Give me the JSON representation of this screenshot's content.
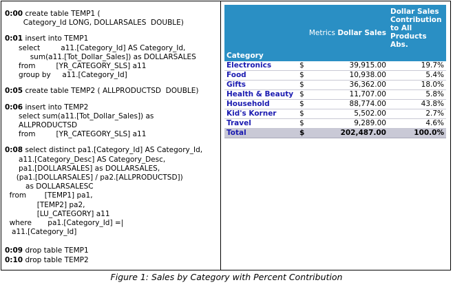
{
  "sql_blocks": [
    {
      "time": "0:00",
      "lines": [
        "create table TEMP1 (",
        "        Category_Id LONG, DOLLARSALES  DOUBLE)"
      ]
    },
    {
      "time": "0:01",
      "lines": [
        "insert into TEMP1",
        "      select         a11.[Category_Id] AS Category_Id,",
        "           sum(a11.[Tot_Dollar_Sales]) as DOLLARSALES",
        "      from         [YR_CATEGORY_SLS] a11",
        "      group by     a11.[Category_Id]"
      ]
    },
    {
      "time": "0:05",
      "lines": [
        "create table TEMP2 ( ALLPRODUCTSD  DOUBLE)"
      ]
    },
    {
      "time": "0:06",
      "lines": [
        "insert into TEMP2",
        "      select sum(a11.[Tot_Dollar_Sales]) as",
        "      ALLPRODUCTSD",
        "      from         [YR_CATEGORY_SLS] a11"
      ]
    },
    {
      "time": "0:08",
      "lines": [
        "select distinct pa1.[Category_Id] AS Category_Id,",
        "      a11.[Category_Desc] AS Category_Desc,",
        "      pa1.[DOLLARSALES] as DOLLARSALES,",
        "     (pa1.[DOLLARSALES] / pa2.[ALLPRODUCTSD])",
        "         as DOLLARSALESC",
        "  from        [TEMP1] pa1,",
        "              [TEMP2] pa2,",
        "              [LU_CATEGORY] a11",
        "  where       pa1.[Category_Id] =|",
        "   a11.[Category_Id]"
      ]
    },
    {
      "time": "0:09",
      "lines": [
        "drop table TEMP1"
      ]
    },
    {
      "time": "0:10",
      "lines": [
        "drop table TEMP2"
      ]
    }
  ],
  "report": {
    "header": {
      "category": "Category",
      "metrics_label": "Metrics",
      "dollar_sales": "Dollar Sales",
      "pct_lines": [
        "Dollar Sales",
        "Contribution",
        "to All",
        "Products",
        "Abs."
      ]
    },
    "rows": [
      {
        "category": "Electronics",
        "currency": "$",
        "amount": "39,915.00",
        "pct": "19.7%"
      },
      {
        "category": "Food",
        "currency": "$",
        "amount": "10,938.00",
        "pct": "5.4%"
      },
      {
        "category": "Gifts",
        "currency": "$",
        "amount": "36,362.00",
        "pct": "18.0%"
      },
      {
        "category": "Health & Beauty",
        "currency": "$",
        "amount": "11,707.00",
        "pct": "5.8%"
      },
      {
        "category": "Household",
        "currency": "$",
        "amount": "88,774.00",
        "pct": "43.8%"
      },
      {
        "category": "Kid's Korner",
        "currency": "$",
        "amount": "5,502.00",
        "pct": "2.7%"
      },
      {
        "category": "Travel",
        "currency": "$",
        "amount": "9,289.00",
        "pct": "4.6%"
      }
    ],
    "total": {
      "category": "Total",
      "currency": "$",
      "amount": "202,487.00",
      "pct": "100.0%"
    }
  },
  "caption": "Figure 1: Sales by Category with Percent Contribution",
  "colors": {
    "header_bg": "#2a8fc4",
    "category_text": "#1a1ab0",
    "total_bg": "#c9c9d6"
  }
}
